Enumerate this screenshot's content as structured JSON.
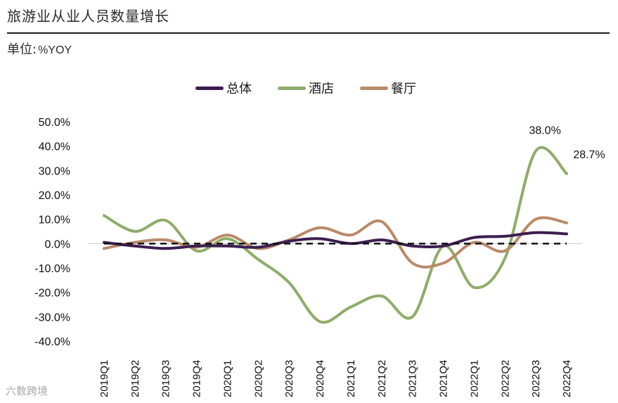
{
  "title": "旅游业从业人员数量增长",
  "unit": {
    "label": "单位:",
    "value": "%YOY"
  },
  "watermark": "六数跨境",
  "chart_data": {
    "type": "line",
    "title": "旅游业从业人员数量增长",
    "ylabel": "%YOY",
    "xlabel": "",
    "ylim": [
      -40,
      50
    ],
    "yticks": [
      50,
      40,
      30,
      20,
      10,
      0,
      -10,
      -20,
      -30,
      -40
    ],
    "ytick_labels": [
      "50.0%",
      "40.0%",
      "30.0%",
      "20.0%",
      "10.0%",
      "0.0%",
      "-10.0%",
      "-20.0%",
      "-30.0%",
      "-40.0%"
    ],
    "categories": [
      "2019Q1",
      "2019Q2",
      "2019Q3",
      "2019Q4",
      "2020Q1",
      "2020Q2",
      "2020Q3",
      "2020Q4",
      "2021Q1",
      "2021Q2",
      "2021Q3",
      "2021Q4",
      "2022Q1",
      "2022Q2",
      "2022Q3",
      "2022Q4"
    ],
    "legend_position": "top-center",
    "series": [
      {
        "name": "总体",
        "color": "#3b1e4f",
        "values": [
          0.5,
          -1.0,
          -2.0,
          -1.0,
          -1.0,
          -1.5,
          1.0,
          2.0,
          0.0,
          1.5,
          -1.0,
          -1.0,
          2.5,
          3.0,
          4.5,
          4.0
        ]
      },
      {
        "name": "酒店",
        "color": "#8fac6a",
        "values": [
          11.5,
          5.0,
          9.5,
          -3.0,
          2.0,
          -6.5,
          -16.0,
          -32.0,
          -26.0,
          -21.5,
          -30.0,
          -1.0,
          -18.0,
          -6.0,
          38.0,
          28.7
        ]
      },
      {
        "name": "餐厅",
        "color": "#b98a68",
        "values": [
          -2.0,
          0.5,
          1.5,
          -1.5,
          3.5,
          -2.0,
          1.5,
          6.5,
          3.5,
          9.0,
          -8.0,
          -8.0,
          0.5,
          -3.0,
          10.0,
          8.5
        ]
      }
    ],
    "annotations": [
      {
        "series": "酒店",
        "category": "2022Q3",
        "text": "38.0%"
      },
      {
        "series": "酒店",
        "category": "2022Q4",
        "text": "28.7%"
      }
    ],
    "baseline": {
      "value": 0,
      "style": "dashed"
    }
  }
}
